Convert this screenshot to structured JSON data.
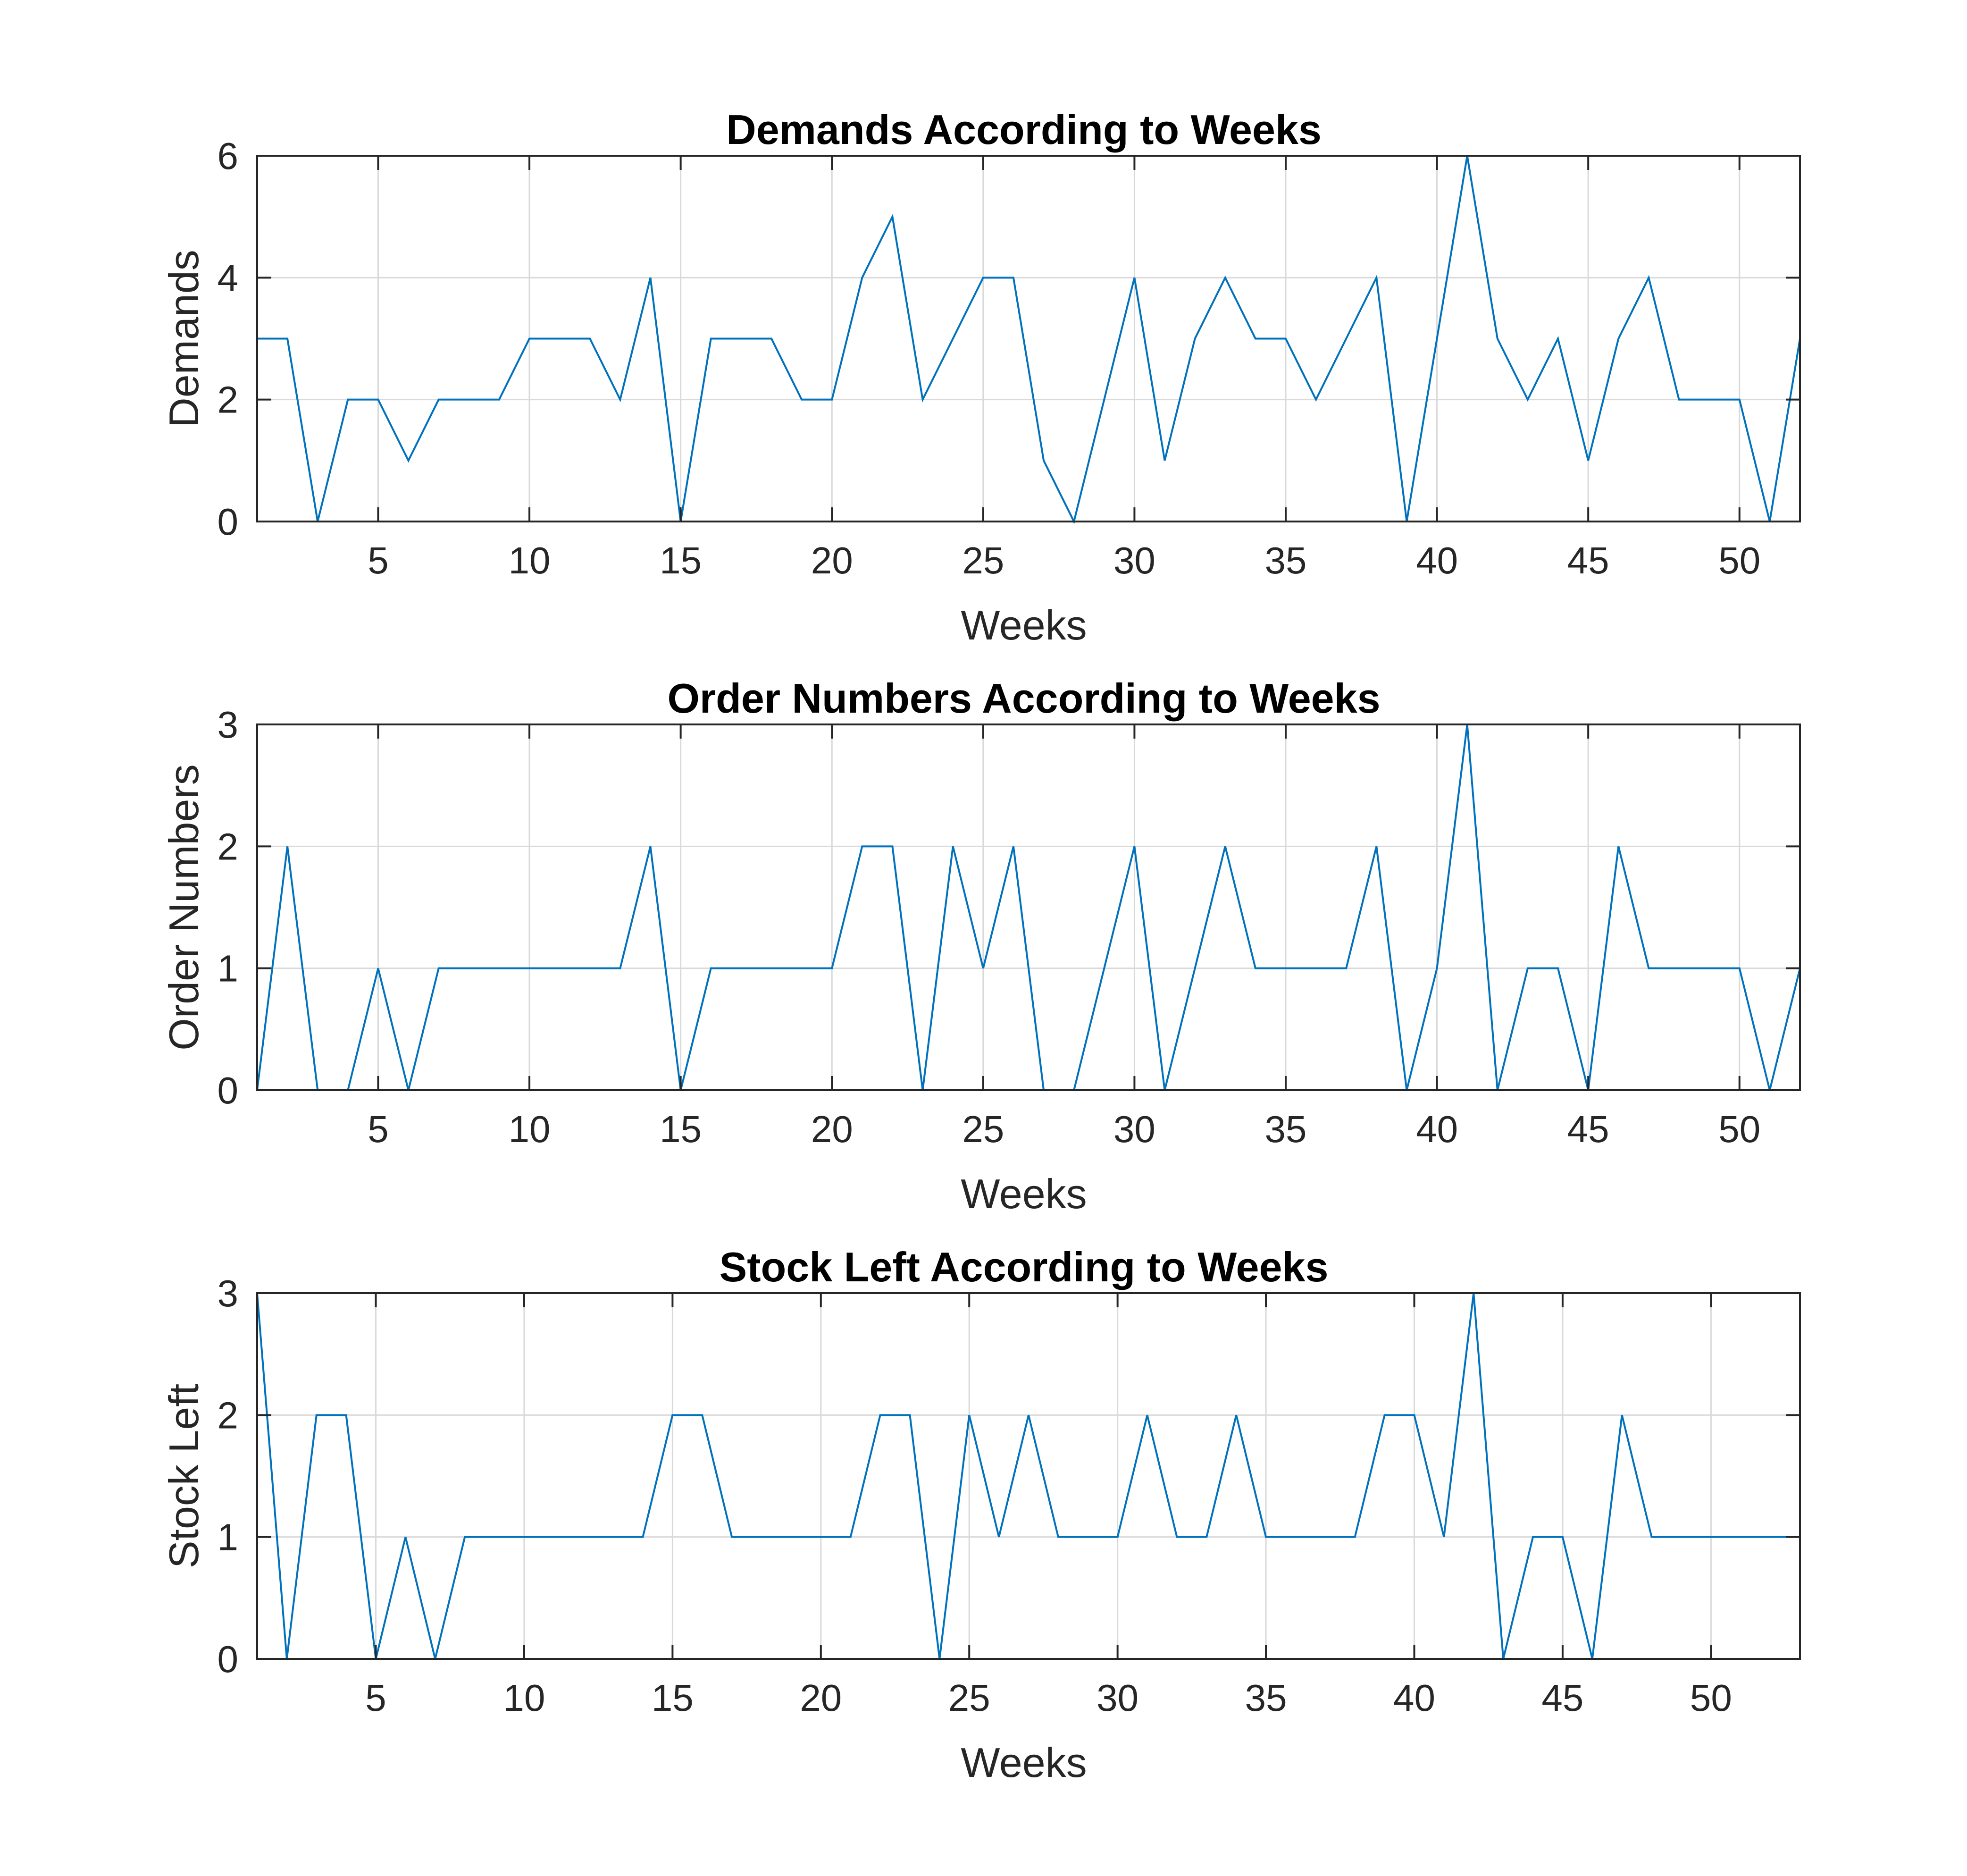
{
  "colors": {
    "series": "#0072BD"
  },
  "chart_data": [
    {
      "type": "line",
      "title": "Demands According to Weeks",
      "xlabel": "Weeks",
      "ylabel": "Demands",
      "xlim": [
        1,
        52
      ],
      "ylim": [
        0,
        6
      ],
      "xticks": [
        5,
        10,
        15,
        20,
        25,
        30,
        35,
        40,
        45,
        50
      ],
      "yticks": [
        0,
        2,
        4,
        6
      ],
      "grid": true,
      "x": [
        1,
        2,
        3,
        4,
        5,
        6,
        7,
        8,
        9,
        10,
        11,
        12,
        13,
        14,
        15,
        16,
        17,
        18,
        19,
        20,
        21,
        22,
        23,
        24,
        25,
        26,
        27,
        28,
        29,
        30,
        31,
        32,
        33,
        34,
        35,
        36,
        37,
        38,
        39,
        40,
        41,
        42,
        43,
        44,
        45,
        46,
        47,
        48,
        49,
        50,
        51,
        52
      ],
      "y": [
        3,
        3,
        0,
        2,
        2,
        1,
        2,
        2,
        2,
        3,
        3,
        3,
        2,
        4,
        0,
        3,
        3,
        3,
        2,
        2,
        4,
        5,
        2,
        3,
        4,
        4,
        1,
        0,
        2,
        4,
        1,
        3,
        4,
        3,
        3,
        2,
        3,
        4,
        0,
        3,
        6,
        3,
        2,
        3,
        1,
        3,
        4,
        2,
        2,
        2,
        0,
        3
      ]
    },
    {
      "type": "line",
      "title": "Order Numbers According to Weeks",
      "xlabel": "Weeks",
      "ylabel": "Order Numbers",
      "xlim": [
        1,
        52
      ],
      "ylim": [
        0,
        3
      ],
      "xticks": [
        5,
        10,
        15,
        20,
        25,
        30,
        35,
        40,
        45,
        50
      ],
      "yticks": [
        0,
        1,
        2,
        3
      ],
      "grid": true,
      "x": [
        1,
        2,
        3,
        4,
        5,
        6,
        7,
        8,
        9,
        10,
        11,
        12,
        13,
        14,
        15,
        16,
        17,
        18,
        19,
        20,
        21,
        22,
        23,
        24,
        25,
        26,
        27,
        28,
        29,
        30,
        31,
        32,
        33,
        34,
        35,
        36,
        37,
        38,
        39,
        40,
        41,
        42,
        43,
        44,
        45,
        46,
        47,
        48,
        49,
        50,
        51,
        52
      ],
      "y": [
        0,
        2,
        0,
        0,
        1,
        0,
        1,
        1,
        1,
        1,
        1,
        1,
        1,
        2,
        0,
        1,
        1,
        1,
        1,
        1,
        2,
        2,
        0,
        2,
        1,
        2,
        0,
        0,
        1,
        2,
        0,
        1,
        2,
        1,
        1,
        1,
        1,
        2,
        0,
        1,
        3,
        0,
        1,
        1,
        0,
        2,
        1,
        1,
        1,
        1,
        0,
        1
      ]
    },
    {
      "type": "line",
      "title": "Stock Left According to Weeks",
      "xlabel": "Weeks",
      "ylabel": "Stock Left",
      "xlim": [
        1,
        53
      ],
      "ylim": [
        0,
        3
      ],
      "xticks": [
        5,
        10,
        15,
        20,
        25,
        30,
        35,
        40,
        45,
        50
      ],
      "yticks": [
        0,
        1,
        2,
        3
      ],
      "grid": true,
      "x": [
        1,
        2,
        3,
        4,
        5,
        6,
        7,
        8,
        9,
        10,
        11,
        12,
        13,
        14,
        15,
        16,
        17,
        18,
        19,
        20,
        21,
        22,
        23,
        24,
        25,
        26,
        27,
        28,
        29,
        30,
        31,
        32,
        33,
        34,
        35,
        36,
        37,
        38,
        39,
        40,
        41,
        42,
        43,
        44,
        45,
        46,
        47,
        48,
        49,
        50,
        51,
        52,
        53
      ],
      "y": [
        3,
        0,
        2,
        2,
        0,
        1,
        0,
        1,
        1,
        1,
        1,
        1,
        1,
        1,
        2,
        2,
        1,
        1,
        1,
        1,
        1,
        2,
        2,
        0,
        2,
        1,
        2,
        1,
        1,
        1,
        2,
        1,
        1,
        2,
        1,
        1,
        1,
        1,
        2,
        2,
        1,
        3,
        0,
        1,
        1,
        0,
        2,
        1,
        1,
        1,
        1,
        1,
        1
      ]
    }
  ]
}
